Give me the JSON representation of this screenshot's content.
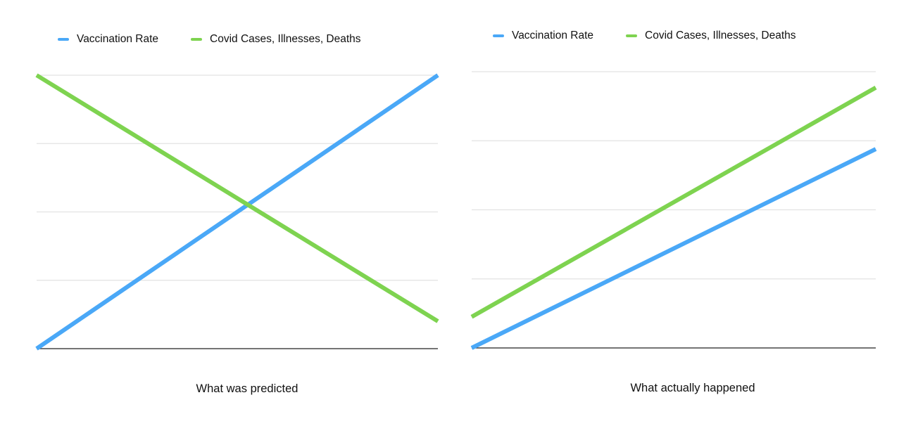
{
  "colors": {
    "vaccination": "#4aa8f7",
    "covid": "#7ed350",
    "grid": "#e2e2e2",
    "axis": "#222222"
  },
  "chart_data": [
    {
      "type": "line",
      "title": "What was predicted",
      "legend": [
        "Vaccination Rate",
        "Covid Cases, Illnesses, Deaths"
      ],
      "legend_placement": "top-left",
      "x": [
        0,
        1
      ],
      "ylim": [
        0,
        4
      ],
      "grid": true,
      "series": [
        {
          "name": "Vaccination Rate",
          "values": [
            0,
            4
          ]
        },
        {
          "name": "Covid Cases, Illnesses, Deaths",
          "values": [
            4,
            0.4
          ]
        }
      ]
    },
    {
      "type": "line",
      "title": "What actually happened",
      "legend": [
        "Vaccination Rate",
        "Covid Cases, Illnesses, Deaths"
      ],
      "legend_placement": "top-left",
      "x": [
        0,
        1
      ],
      "ylim": [
        0,
        4
      ],
      "grid": true,
      "series": [
        {
          "name": "Vaccination Rate",
          "values": [
            0,
            2.88
          ]
        },
        {
          "name": "Covid Cases, Illnesses, Deaths",
          "values": [
            0.45,
            3.77
          ]
        }
      ]
    }
  ]
}
